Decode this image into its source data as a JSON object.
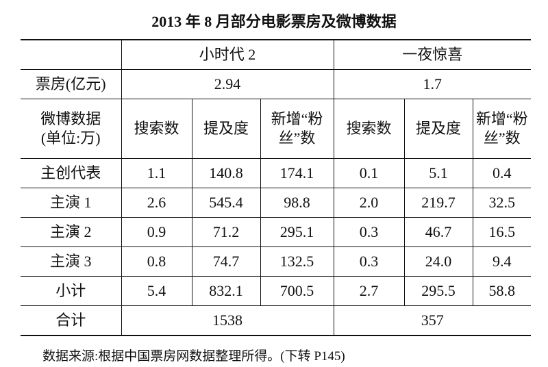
{
  "title": "2013 年 8 月部分电影票房及微博数据",
  "table": {
    "groups": [
      "小时代 2",
      "一夜惊喜"
    ],
    "box_office": {
      "label": "票房(亿元)",
      "values": [
        "2.94",
        "1.7"
      ]
    },
    "weibo": {
      "label": [
        "微博数据",
        "(单位:万)"
      ],
      "columns": [
        [
          "搜索数"
        ],
        [
          "提及度"
        ],
        [
          "新增“粉",
          "丝”数"
        ],
        [
          "搜索数"
        ],
        [
          "提及度"
        ],
        [
          "新增“粉",
          "丝”数"
        ]
      ]
    },
    "rows": [
      {
        "label": "主创代表",
        "values": [
          "1.1",
          "140.8",
          "174.1",
          "0.1",
          "5.1",
          "0.4"
        ]
      },
      {
        "label": "主演 1",
        "values": [
          "2.6",
          "545.4",
          "98.8",
          "2.0",
          "219.7",
          "32.5"
        ]
      },
      {
        "label": "主演 2",
        "values": [
          "0.9",
          "71.2",
          "295.1",
          "0.3",
          "46.7",
          "16.5"
        ]
      },
      {
        "label": "主演 3",
        "values": [
          "0.8",
          "74.7",
          "132.5",
          "0.3",
          "24.0",
          "9.4"
        ]
      },
      {
        "label": "小计",
        "values": [
          "5.4",
          "832.1",
          "700.5",
          "2.7",
          "295.5",
          "58.8"
        ]
      }
    ],
    "total": {
      "label": "合计",
      "values": [
        "1538",
        "357"
      ]
    }
  },
  "source": "数据来源:根据中国票房网数据整理所得。(下转 P145)"
}
